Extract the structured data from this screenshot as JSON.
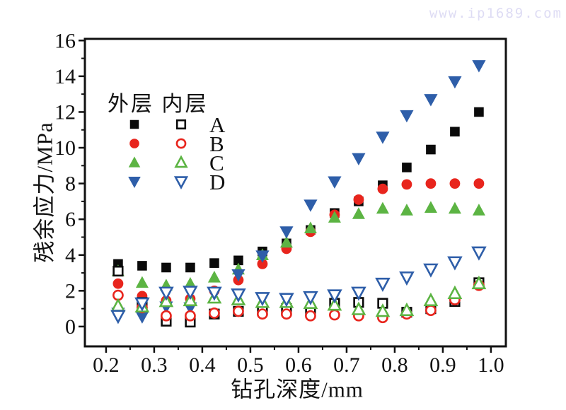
{
  "watermark": "www.ip1689.com",
  "chart_data": {
    "type": "scatter",
    "title": "",
    "xlabel": "钻孔深度/mm",
    "ylabel": "残余应力/MPa",
    "grid": false,
    "xlim": [
      0.156,
      1.031
    ],
    "ylim": [
      -1.11,
      16.09
    ],
    "x_ticks": [
      0.2,
      0.3,
      0.4,
      0.5,
      0.6,
      0.7,
      0.8,
      0.9,
      1.0
    ],
    "x_tick_labels": [
      "0.2",
      "0.3",
      "0.4",
      "0.5",
      "0.6",
      "0.7",
      "0.8",
      "0.9",
      "1.0"
    ],
    "x_minor_ticks": [
      0.25,
      0.35,
      0.45,
      0.55,
      0.65,
      0.75,
      0.85,
      0.95
    ],
    "y_ticks": [
      0,
      2,
      4,
      6,
      8,
      10,
      12,
      14,
      16
    ],
    "y_tick_labels": [
      "0",
      "2",
      "4",
      "6",
      "8",
      "10",
      "12",
      "14",
      "16"
    ],
    "y_minor_ticks": [
      1,
      3,
      5,
      7,
      9,
      11,
      13,
      15
    ],
    "legend": {
      "outer_header": "外层",
      "inner_header": "内层",
      "row_labels": [
        "A",
        "B",
        "C",
        "D"
      ],
      "position": "upper-left-inside"
    },
    "marker_colors": {
      "A": "#0a0a0a",
      "B": "#e8251d",
      "C": "#5cb443",
      "D": "#2e5ea9"
    },
    "x": [
      0.225,
      0.275,
      0.325,
      0.375,
      0.425,
      0.475,
      0.525,
      0.575,
      0.625,
      0.675,
      0.725,
      0.775,
      0.825,
      0.875,
      0.925,
      0.975
    ],
    "series": [
      {
        "id": "outer-A",
        "layer": "外层",
        "label": "A",
        "marker": "square",
        "style": "filled",
        "color": "#0a0a0a",
        "values": [
          3.5,
          3.4,
          3.3,
          3.3,
          3.55,
          3.7,
          4.2,
          4.65,
          5.4,
          6.35,
          7.0,
          7.9,
          8.9,
          9.9,
          10.9,
          12.0
        ]
      },
      {
        "id": "outer-B",
        "layer": "外层",
        "label": "B",
        "marker": "circle",
        "style": "filled",
        "color": "#e8251d",
        "values": [
          2.4,
          1.7,
          1.45,
          1.55,
          2.0,
          2.6,
          3.5,
          4.35,
          5.3,
          6.25,
          7.1,
          7.7,
          7.95,
          8.0,
          8.0,
          8.0
        ]
      },
      {
        "id": "outer-C",
        "layer": "外层",
        "label": "C",
        "marker": "triangle-up",
        "style": "filled",
        "color": "#5cb443",
        "values": [
          3.1,
          2.45,
          2.3,
          2.4,
          2.75,
          3.2,
          4.0,
          4.7,
          5.5,
          6.1,
          6.3,
          6.6,
          6.5,
          6.65,
          6.6,
          6.5
        ]
      },
      {
        "id": "outer-D",
        "layer": "外层",
        "label": "D",
        "marker": "triangle-down",
        "style": "filled",
        "color": "#2e5ea9",
        "values": [
          0.75,
          0.55,
          1.1,
          1.05,
          1.9,
          2.9,
          3.95,
          5.3,
          6.8,
          8.1,
          9.4,
          10.6,
          11.8,
          12.7,
          13.7,
          14.6
        ]
      },
      {
        "id": "inner-A",
        "layer": "内层",
        "label": "A",
        "marker": "square",
        "style": "hollow",
        "color": "#0a0a0a",
        "values": [
          3.1,
          1.35,
          0.3,
          0.25,
          0.7,
          0.85,
          0.95,
          1.0,
          0.9,
          1.3,
          1.35,
          1.3,
          0.8,
          1.0,
          1.4,
          2.45
        ]
      },
      {
        "id": "inner-B",
        "layer": "内层",
        "label": "B",
        "marker": "circle",
        "style": "hollow",
        "color": "#e8251d",
        "values": [
          1.75,
          1.05,
          0.6,
          0.6,
          0.75,
          0.85,
          0.7,
          0.7,
          0.6,
          0.65,
          0.6,
          0.5,
          0.7,
          0.9,
          1.5,
          2.3
        ]
      },
      {
        "id": "inner-C",
        "layer": "内层",
        "label": "C",
        "marker": "triangle-up",
        "style": "hollow",
        "color": "#5cb443",
        "values": [
          1.15,
          1.1,
          1.4,
          1.45,
          1.6,
          1.5,
          1.35,
          1.35,
          1.3,
          1.2,
          0.95,
          0.85,
          0.9,
          1.45,
          1.85,
          2.4
        ]
      },
      {
        "id": "inner-D",
        "layer": "内层",
        "label": "D",
        "marker": "triangle-down",
        "style": "hollow",
        "color": "#2e5ea9",
        "values": [
          0.6,
          1.3,
          1.9,
          1.95,
          1.9,
          1.8,
          1.6,
          1.55,
          1.65,
          1.75,
          1.9,
          2.4,
          2.75,
          3.2,
          3.6,
          4.15
        ]
      }
    ]
  }
}
